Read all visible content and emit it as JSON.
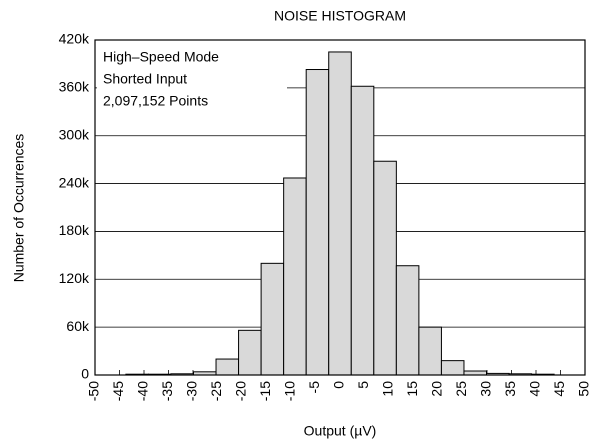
{
  "chart_data": {
    "type": "histogram",
    "title": "NOISE HISTOGRAM",
    "xlabel": "Output (µV)",
    "ylabel": "Number of Occurrences",
    "annotations": [
      "High–Speed Mode",
      "Shorted Input",
      "2,097,152 Points"
    ],
    "bins": [
      -43.7,
      -39.1,
      -34.5,
      -29.9,
      -25.3,
      -20.7,
      -16.1,
      -11.5,
      -6.9,
      -2.3,
      2.3,
      6.9,
      11.5,
      16.1,
      20.7,
      25.3,
      29.9,
      34.5,
      39.1,
      43.7
    ],
    "values": [
      1000,
      1000,
      1500,
      4000,
      20000,
      56000,
      140000,
      247000,
      383000,
      405000,
      362000,
      268000,
      137000,
      60000,
      18000,
      5000,
      2000,
      1500,
      1000
    ],
    "color": "#d9d9d9",
    "xlim": [
      -50,
      50
    ],
    "xticks": [
      -50,
      -45,
      -40,
      -35,
      -30,
      -25,
      -20,
      -15,
      -10,
      -5,
      0,
      5,
      10,
      15,
      20,
      25,
      30,
      35,
      40,
      45,
      50
    ],
    "ylim": [
      0,
      420000
    ],
    "yticks": [
      0,
      {
        "value": 60000,
        "label": "60k"
      },
      {
        "value": 120000,
        "label": "120k"
      },
      {
        "value": 180000,
        "label": "180k"
      },
      {
        "value": 240000,
        "label": "240k"
      },
      {
        "value": 300000,
        "label": "300k"
      },
      {
        "value": 360000,
        "label": "360k"
      },
      {
        "value": 420000,
        "label": "420k"
      }
    ],
    "grid": true
  }
}
